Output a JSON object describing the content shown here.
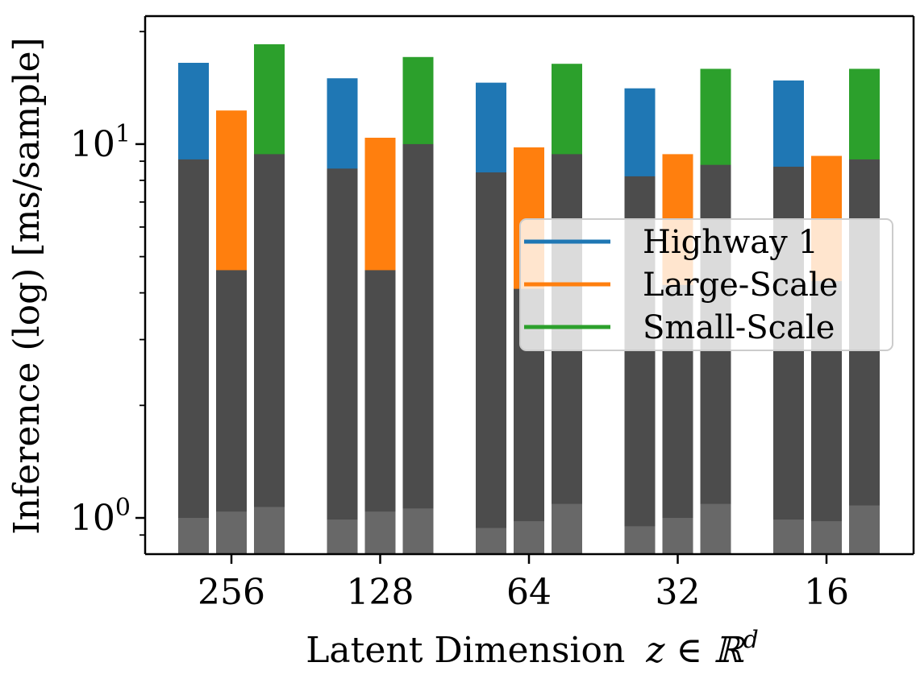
{
  "chart_data": {
    "type": "bar",
    "title": "",
    "xlabel": "Latent Dimension",
    "xlabel_math": "z ∈ ℝ",
    "xlabel_sup": "d",
    "ylabel": "Inference (log) [ms/sample]",
    "yscale": "log",
    "ylim": [
      0.8,
      22
    ],
    "yticks": [
      {
        "value": 1,
        "base": "10",
        "exp": "0"
      },
      {
        "value": 10,
        "base": "10",
        "exp": "1"
      }
    ],
    "categories": [
      "256",
      "128",
      "64",
      "32",
      "16"
    ],
    "series": [
      {
        "name": "Highway 1",
        "color": "#1f77b4",
        "values": [
          16.5,
          15.0,
          14.6,
          14.1,
          14.8
        ],
        "dark_values": [
          9.1,
          8.6,
          8.4,
          8.2,
          8.7
        ],
        "light_values": [
          1.0,
          0.99,
          0.94,
          0.95,
          0.99
        ]
      },
      {
        "name": "Large-Scale",
        "color": "#ff7f0e",
        "values": [
          12.3,
          10.4,
          9.8,
          9.4,
          9.3
        ],
        "dark_values": [
          4.6,
          4.6,
          4.1,
          4.2,
          4.3
        ],
        "light_values": [
          1.04,
          1.04,
          0.98,
          1.0,
          0.98
        ]
      },
      {
        "name": "Small-Scale",
        "color": "#2ca02c",
        "values": [
          18.5,
          17.1,
          16.4,
          15.9,
          15.9
        ],
        "dark_values": [
          9.4,
          10.0,
          9.4,
          8.8,
          9.1
        ],
        "light_values": [
          1.07,
          1.06,
          1.09,
          1.09,
          1.08
        ]
      }
    ],
    "overlay_colors": {
      "dark": "#4c4c4c",
      "light": "#686868"
    },
    "legend_position": "center-right"
  }
}
